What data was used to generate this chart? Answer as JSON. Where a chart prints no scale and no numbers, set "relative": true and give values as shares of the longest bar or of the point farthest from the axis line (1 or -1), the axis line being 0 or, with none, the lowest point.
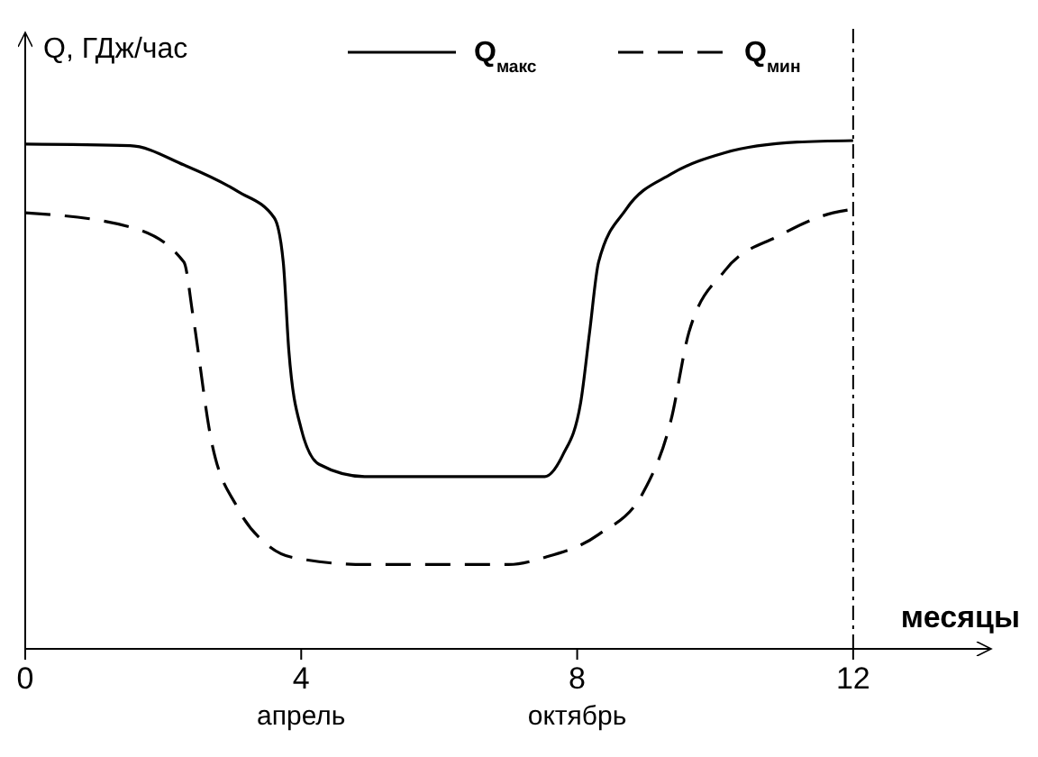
{
  "chart_data": {
    "type": "line",
    "relative": true,
    "ylabel": "Q, ГДж/час",
    "xlabel": "месяцы",
    "xlim": [
      0,
      14
    ],
    "xticks": [
      0,
      4,
      8,
      12
    ],
    "legend": "top",
    "marker": "none",
    "grid": false,
    "series": [
      {
        "name": "Q$_{макс}$",
        "color": "#000000",
        "line_style": "solid",
        "x": [
          0,
          1.52,
          2.3,
          3.08,
          3.61,
          3.74,
          3.82,
          4.0,
          4.26,
          4.92,
          7.53,
          7.79,
          8.05,
          8.18,
          8.31,
          8.71,
          9.36,
          10.14,
          11.19,
          12
        ],
        "values": [
          0.993,
          0.99,
          0.952,
          0.9,
          0.848,
          0.761,
          0.588,
          0.433,
          0.363,
          0.339,
          0.339,
          0.381,
          0.484,
          0.623,
          0.761,
          0.865,
          0.934,
          0.976,
          0.997,
          1
        ]
      },
      {
        "name": "Q$_{мин}$",
        "color": "#000000",
        "line_style": "dashed",
        "x": [
          0,
          1.52,
          2.3,
          2.43,
          2.69,
          3.08,
          3.48,
          3.87,
          4.92,
          7.01,
          7.53,
          8.31,
          8.97,
          9.36,
          9.62,
          10.14,
          10.93,
          11.71,
          12
        ],
        "values": [
          0.858,
          0.83,
          0.761,
          0.657,
          0.415,
          0.277,
          0.208,
          0.18,
          0.166,
          0.166,
          0.18,
          0.225,
          0.311,
          0.45,
          0.623,
          0.744,
          0.813,
          0.858,
          0.865
        ]
      }
    ],
    "ref_lines": [
      {
        "axis": "x",
        "value": 12,
        "line_style": "dashed",
        "color": "#000000"
      }
    ],
    "annotations": [
      "апрель",
      "октябрь"
    ]
  }
}
